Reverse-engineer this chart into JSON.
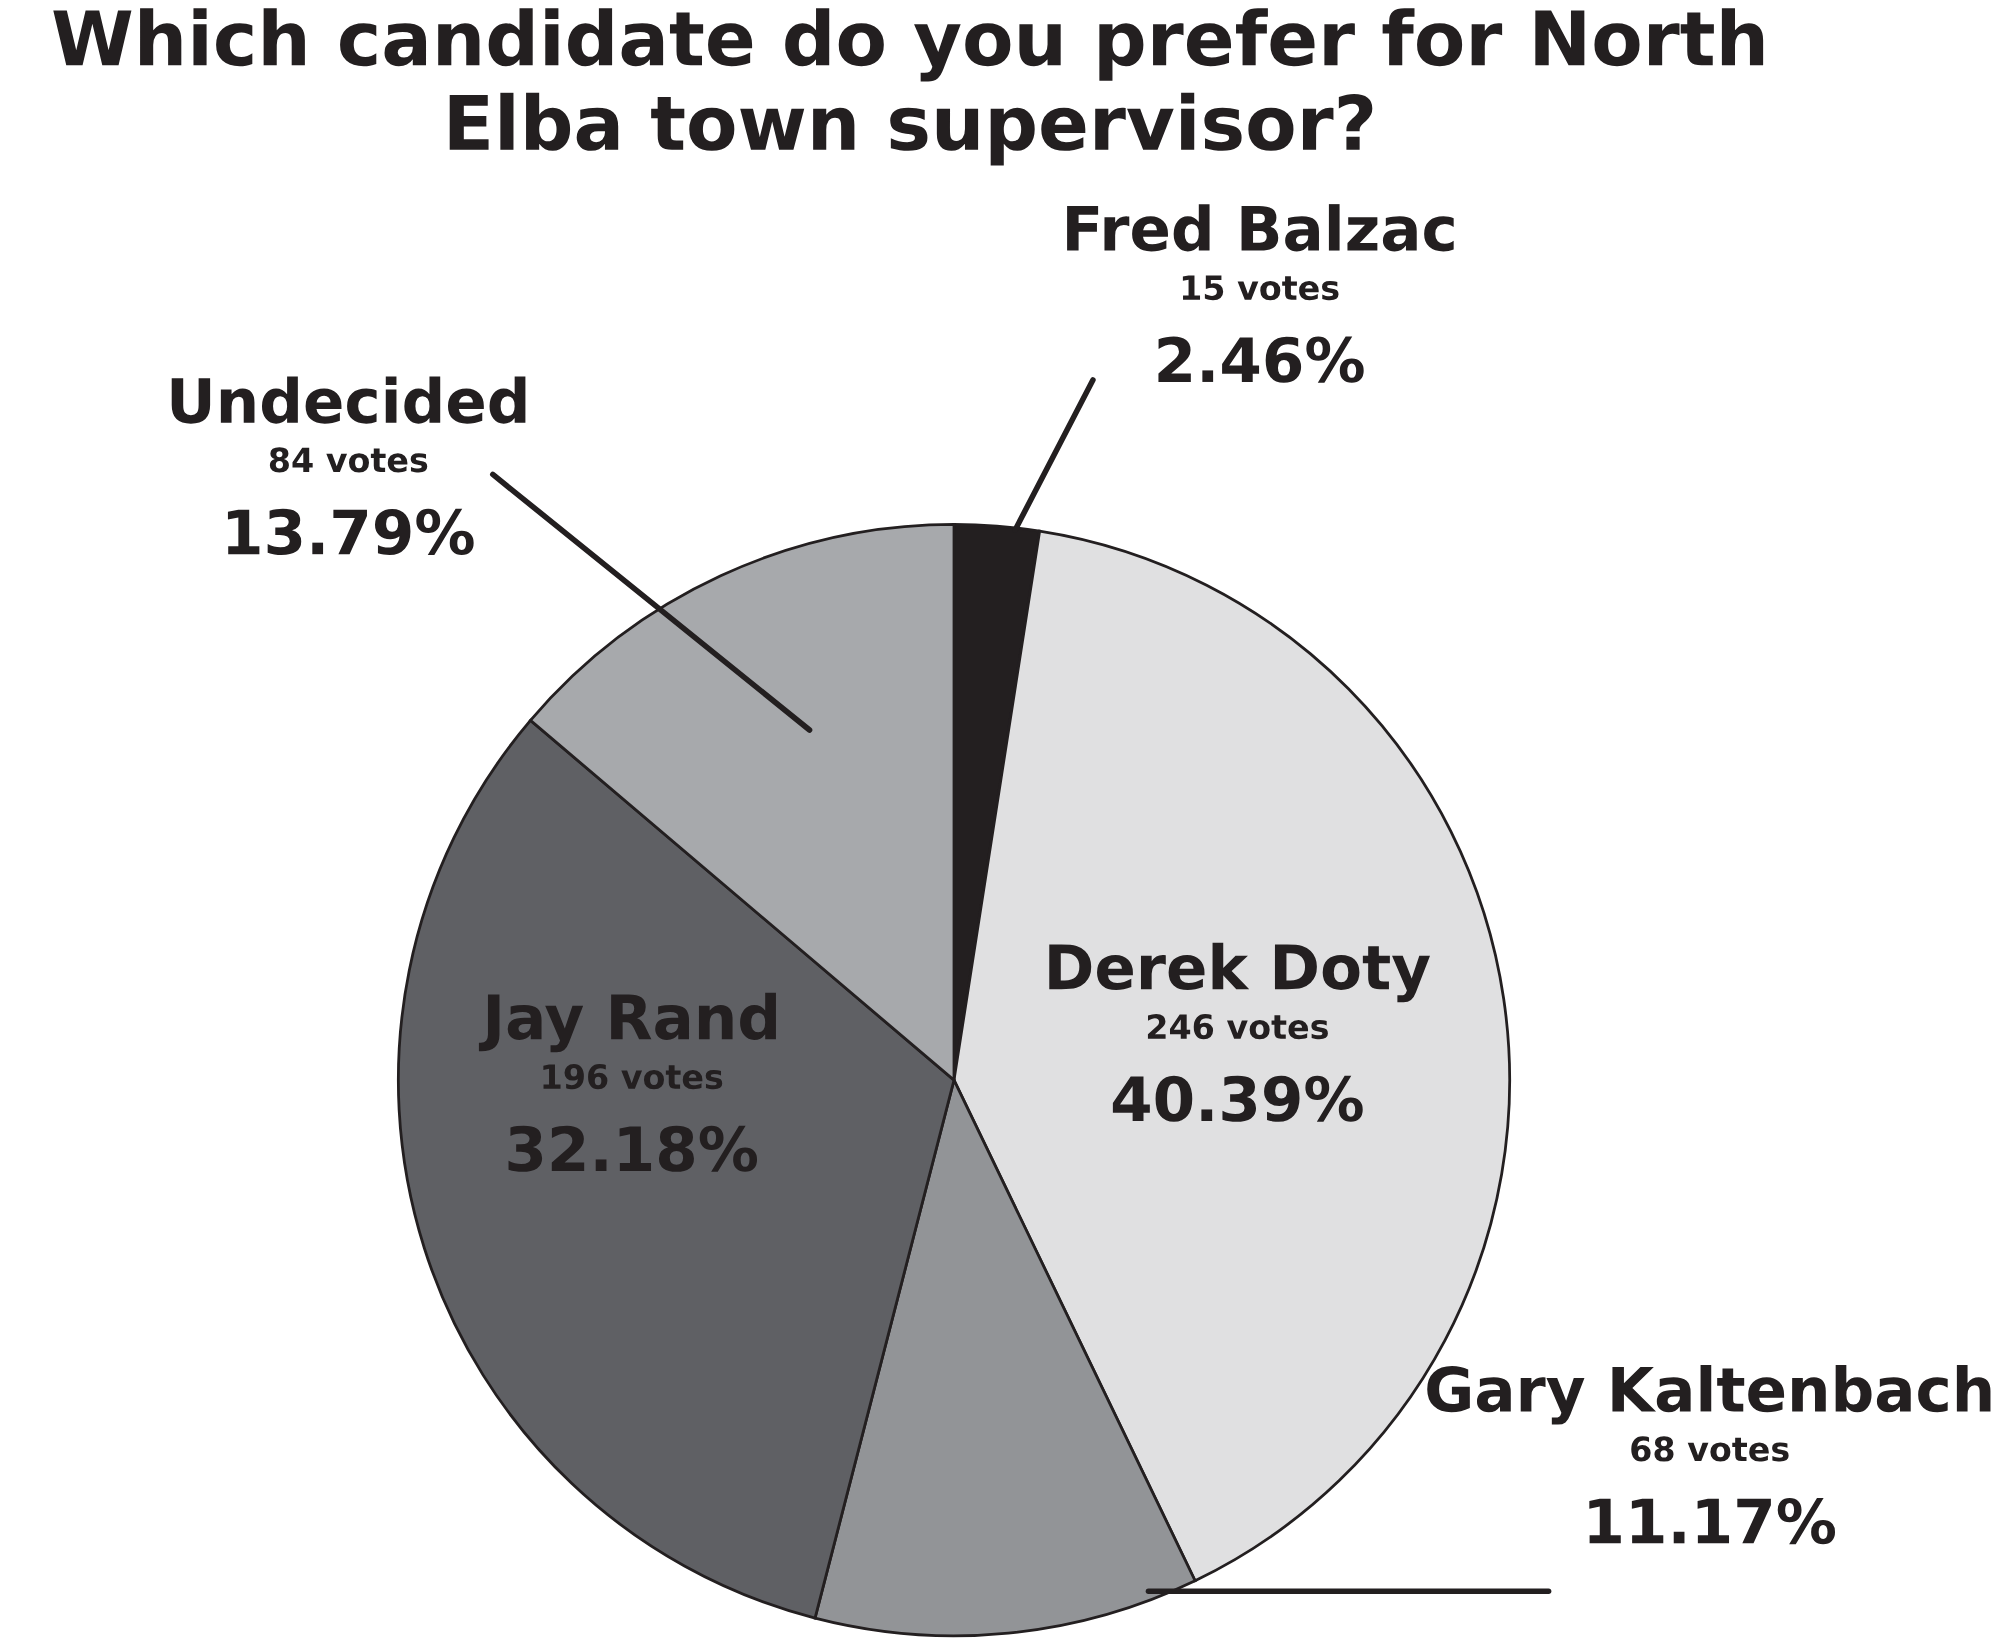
{
  "chart_data": {
    "type": "pie",
    "title": "Which candidate do you prefer for North Elba town supervisor?",
    "categories": [
      "Fred Balzac",
      "Derek Doty",
      "Gary Kaltenbach",
      "Jay Rand",
      "Undecided"
    ],
    "values": [
      15,
      246,
      68,
      196,
      84
    ],
    "value_labels": [
      "15 votes\n2.46%",
      "246 votes\n40.39%",
      "68 votes\n11.17%",
      "196 votes\n32.18%",
      "84 votes\n13.79%"
    ],
    "colors": [
      "#231f20",
      "#e0e0e1",
      "#929497",
      "#5f6064",
      "#a7a9ac"
    ],
    "legend": false
  }
}
